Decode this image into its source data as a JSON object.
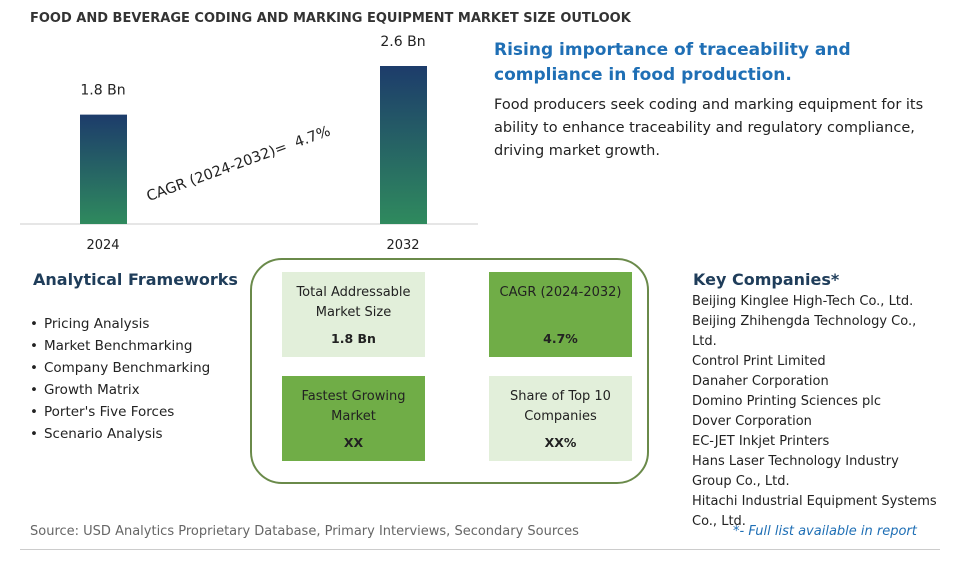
{
  "chart_data": {
    "type": "bar",
    "title": "FOOD AND BEVERAGE CODING AND MARKING EQUIPMENT MARKET SIZE OUTLOOK",
    "categories": [
      "2024",
      "2032"
    ],
    "values": [
      1.8,
      2.6
    ],
    "value_labels": [
      "1.8 Bn",
      "2.6 Bn"
    ],
    "annotation": "CAGR (2024-2032)=  4.7%"
  },
  "highlight": {
    "heading": "Rising importance of traceability and compliance in food production.",
    "text": "Food producers seek coding and marking equipment for its ability to enhance traceability and regulatory compliance, driving market growth."
  },
  "frameworks": {
    "title": "Analytical Frameworks",
    "items": [
      "Pricing Analysis",
      "Market Benchmarking",
      "Company Benchmarking",
      "Growth Matrix",
      "Porter's Five Forces",
      "Scenario Analysis"
    ]
  },
  "metrics": [
    {
      "label": "Total Addressable Market Size",
      "value": "1.8 Bn"
    },
    {
      "label": "CAGR (2024-2032)",
      "value": "4.7%"
    },
    {
      "label": "Fastest Growing Market",
      "value": "XX"
    },
    {
      "label": "Share of Top 10 Companies",
      "value": "XX%"
    }
  ],
  "companies": {
    "title": "Key Companies*",
    "items": [
      "Beijing Kinglee High-Tech Co., Ltd.",
      "Beijing Zhihengda Technology Co., Ltd.",
      "Control Print Limited",
      "Danaher Corporation",
      "Domino Printing Sciences plc",
      "Dover Corporation",
      "EC-JET Inkjet Printers",
      "Hans Laser Technology Industry Group Co., Ltd.",
      "Hitachi Industrial Equipment Systems Co., Ltd."
    ],
    "note": "*- Full list available in report"
  },
  "source": "Source: USD Analytics Proprietary Database, Primary Interviews, Secondary Sources"
}
